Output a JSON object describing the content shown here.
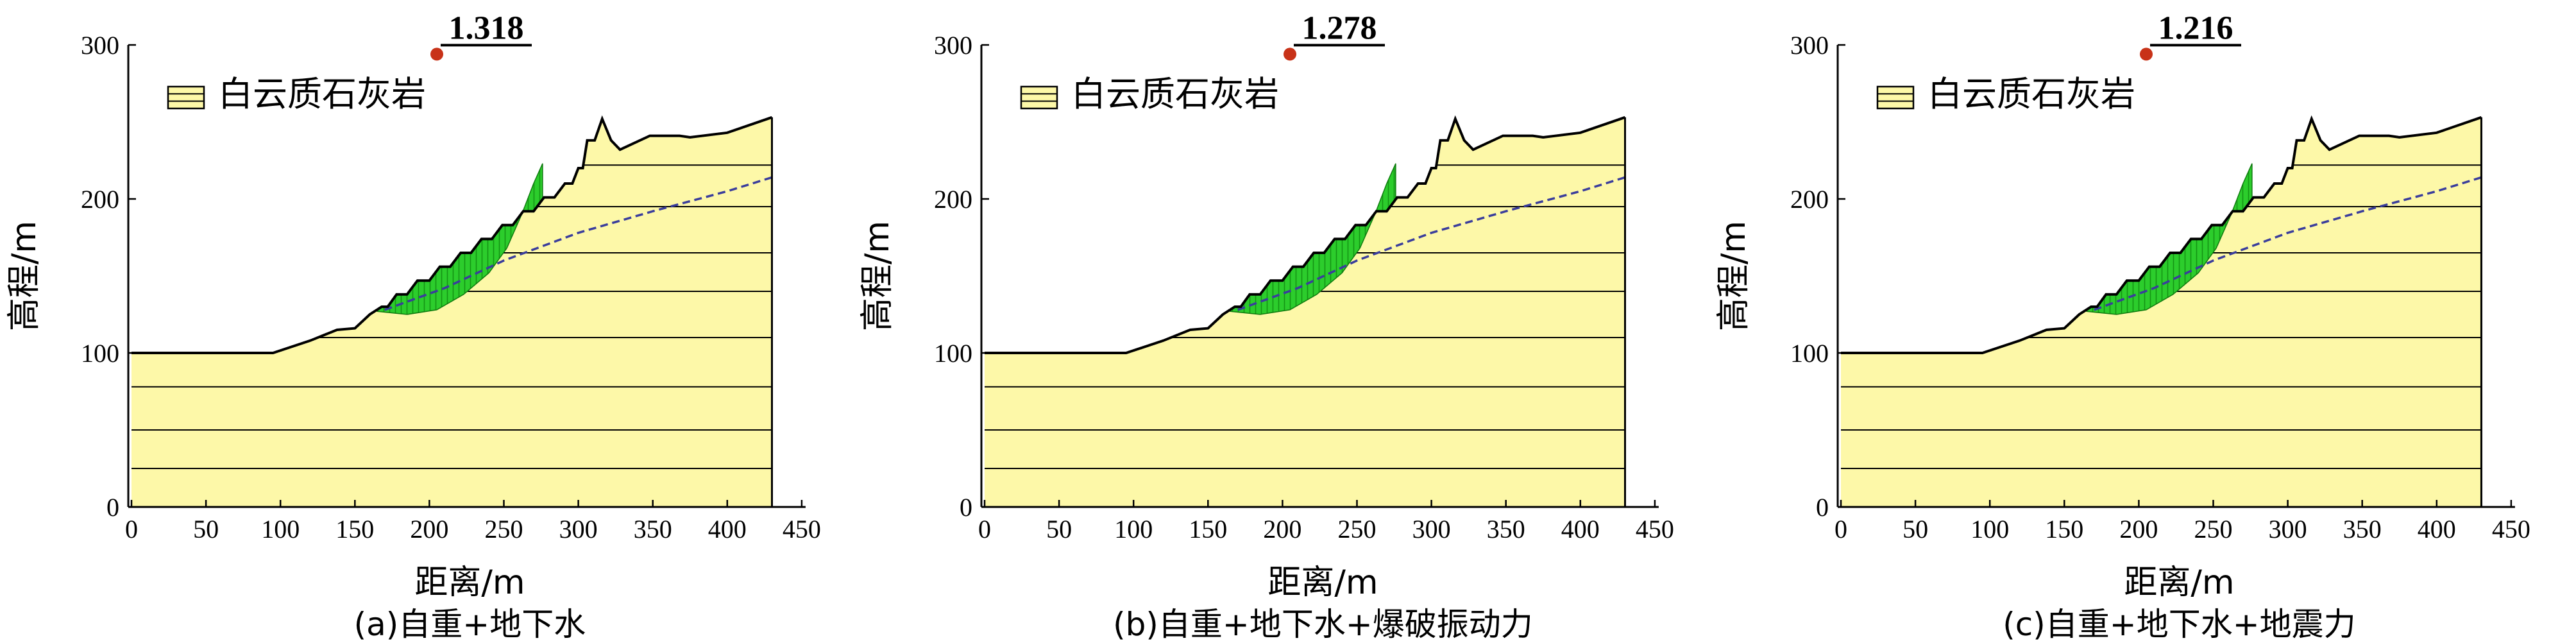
{
  "legend_label": "白云质石灰岩",
  "legend_color": "#fdf8a8",
  "slip_color": "#2ccd2c",
  "colors": {
    "rock": "#fdf8a8",
    "slip_mass": "#2ccd2c",
    "water_table": "#3a3d9c",
    "critical_point": "#c83218"
  },
  "chart_data": [
    {
      "type": "area",
      "caption": "(a)自重+地下水",
      "safety_factor": "1.318",
      "xlabel": "距离/m",
      "ylabel": "高程/m",
      "xlim": [
        0,
        450
      ],
      "ylim": [
        0,
        300
      ],
      "xticks": [
        "0",
        "50",
        "100",
        "150",
        "200",
        "250",
        "300",
        "350",
        "400",
        "450"
      ],
      "yticks": [
        "0",
        "100",
        "200",
        "300"
      ],
      "legend": "白云质石灰岩",
      "ground_surface": [
        [
          0,
          100
        ],
        [
          95,
          100
        ],
        [
          120,
          108
        ],
        [
          138,
          115
        ],
        [
          150,
          116
        ],
        [
          160,
          125
        ],
        [
          168,
          130
        ],
        [
          172,
          130
        ],
        [
          178,
          138
        ],
        [
          185,
          138
        ],
        [
          192,
          147
        ],
        [
          200,
          147
        ],
        [
          207,
          156
        ],
        [
          214,
          156
        ],
        [
          221,
          165
        ],
        [
          228,
          165
        ],
        [
          235,
          174
        ],
        [
          242,
          174
        ],
        [
          249,
          183
        ],
        [
          256,
          183
        ],
        [
          263,
          192
        ],
        [
          270,
          192
        ],
        [
          277,
          201
        ],
        [
          284,
          201
        ],
        [
          291,
          210
        ],
        [
          296,
          210
        ],
        [
          300,
          220
        ],
        [
          303,
          220
        ],
        [
          306,
          238
        ],
        [
          311,
          238
        ],
        [
          316,
          252
        ],
        [
          322,
          238
        ],
        [
          328,
          232
        ],
        [
          348,
          241
        ],
        [
          368,
          241
        ],
        [
          375,
          240
        ],
        [
          400,
          243
        ],
        [
          430,
          253
        ]
      ],
      "water_table": [
        [
          170,
          128
        ],
        [
          210,
          142
        ],
        [
          250,
          160
        ],
        [
          300,
          178
        ],
        [
          350,
          192
        ],
        [
          400,
          205
        ],
        [
          430,
          214
        ]
      ],
      "bedding_elevations": [
        25,
        50,
        78,
        110,
        140,
        165,
        195,
        222
      ],
      "slip_surface": [
        [
          165,
          127
        ],
        [
          185,
          125
        ],
        [
          205,
          128
        ],
        [
          223,
          138
        ],
        [
          240,
          152
        ],
        [
          252,
          168
        ],
        [
          262,
          190
        ],
        [
          270,
          210
        ],
        [
          276,
          223
        ]
      ],
      "critical_point": [
        205,
        294
      ]
    },
    {
      "type": "area",
      "caption": "(b)自重+地下水+爆破振动力",
      "safety_factor": "1.278",
      "xlabel": "距离/m",
      "ylabel": "高程/m",
      "xlim": [
        0,
        450
      ],
      "ylim": [
        0,
        300
      ],
      "xticks": [
        "0",
        "50",
        "100",
        "150",
        "200",
        "250",
        "300",
        "350",
        "400",
        "450"
      ],
      "yticks": [
        "0",
        "100",
        "200",
        "300"
      ],
      "legend": "白云质石灰岩",
      "ground_surface": [
        [
          0,
          100
        ],
        [
          95,
          100
        ],
        [
          120,
          108
        ],
        [
          138,
          115
        ],
        [
          150,
          116
        ],
        [
          160,
          125
        ],
        [
          168,
          130
        ],
        [
          172,
          130
        ],
        [
          178,
          138
        ],
        [
          185,
          138
        ],
        [
          192,
          147
        ],
        [
          200,
          147
        ],
        [
          207,
          156
        ],
        [
          214,
          156
        ],
        [
          221,
          165
        ],
        [
          228,
          165
        ],
        [
          235,
          174
        ],
        [
          242,
          174
        ],
        [
          249,
          183
        ],
        [
          256,
          183
        ],
        [
          263,
          192
        ],
        [
          270,
          192
        ],
        [
          277,
          201
        ],
        [
          284,
          201
        ],
        [
          291,
          210
        ],
        [
          296,
          210
        ],
        [
          300,
          220
        ],
        [
          303,
          220
        ],
        [
          306,
          238
        ],
        [
          311,
          238
        ],
        [
          316,
          252
        ],
        [
          322,
          238
        ],
        [
          328,
          232
        ],
        [
          348,
          241
        ],
        [
          368,
          241
        ],
        [
          375,
          240
        ],
        [
          400,
          243
        ],
        [
          430,
          253
        ]
      ],
      "water_table": [
        [
          170,
          128
        ],
        [
          210,
          142
        ],
        [
          250,
          160
        ],
        [
          300,
          178
        ],
        [
          350,
          192
        ],
        [
          400,
          205
        ],
        [
          430,
          214
        ]
      ],
      "bedding_elevations": [
        25,
        50,
        78,
        110,
        140,
        165,
        195,
        222
      ],
      "slip_surface": [
        [
          165,
          127
        ],
        [
          185,
          125
        ],
        [
          205,
          128
        ],
        [
          223,
          138
        ],
        [
          240,
          152
        ],
        [
          252,
          168
        ],
        [
          262,
          190
        ],
        [
          270,
          210
        ],
        [
          276,
          223
        ]
      ],
      "critical_point": [
        205,
        294
      ]
    },
    {
      "type": "area",
      "caption": "(c)自重+地下水+地震力",
      "safety_factor": "1.216",
      "xlabel": "距离/m",
      "ylabel": "高程/m",
      "xlim": [
        0,
        450
      ],
      "ylim": [
        0,
        300
      ],
      "xticks": [
        "0",
        "50",
        "100",
        "150",
        "200",
        "250",
        "300",
        "350",
        "400",
        "450"
      ],
      "yticks": [
        "0",
        "100",
        "200",
        "300"
      ],
      "legend": "白云质石灰岩",
      "ground_surface": [
        [
          0,
          100
        ],
        [
          95,
          100
        ],
        [
          120,
          108
        ],
        [
          138,
          115
        ],
        [
          150,
          116
        ],
        [
          160,
          125
        ],
        [
          168,
          130
        ],
        [
          172,
          130
        ],
        [
          178,
          138
        ],
        [
          185,
          138
        ],
        [
          192,
          147
        ],
        [
          200,
          147
        ],
        [
          207,
          156
        ],
        [
          214,
          156
        ],
        [
          221,
          165
        ],
        [
          228,
          165
        ],
        [
          235,
          174
        ],
        [
          242,
          174
        ],
        [
          249,
          183
        ],
        [
          256,
          183
        ],
        [
          263,
          192
        ],
        [
          270,
          192
        ],
        [
          277,
          201
        ],
        [
          284,
          201
        ],
        [
          291,
          210
        ],
        [
          296,
          210
        ],
        [
          300,
          220
        ],
        [
          303,
          220
        ],
        [
          306,
          238
        ],
        [
          311,
          238
        ],
        [
          316,
          252
        ],
        [
          322,
          238
        ],
        [
          328,
          232
        ],
        [
          348,
          241
        ],
        [
          368,
          241
        ],
        [
          375,
          240
        ],
        [
          400,
          243
        ],
        [
          430,
          253
        ]
      ],
      "water_table": [
        [
          170,
          128
        ],
        [
          210,
          142
        ],
        [
          250,
          160
        ],
        [
          300,
          178
        ],
        [
          350,
          192
        ],
        [
          400,
          205
        ],
        [
          430,
          214
        ]
      ],
      "bedding_elevations": [
        25,
        50,
        78,
        110,
        140,
        165,
        195,
        222
      ],
      "slip_surface": [
        [
          165,
          127
        ],
        [
          185,
          125
        ],
        [
          205,
          128
        ],
        [
          223,
          138
        ],
        [
          240,
          152
        ],
        [
          252,
          168
        ],
        [
          262,
          190
        ],
        [
          270,
          210
        ],
        [
          276,
          223
        ]
      ],
      "critical_point": [
        205,
        294
      ]
    }
  ]
}
